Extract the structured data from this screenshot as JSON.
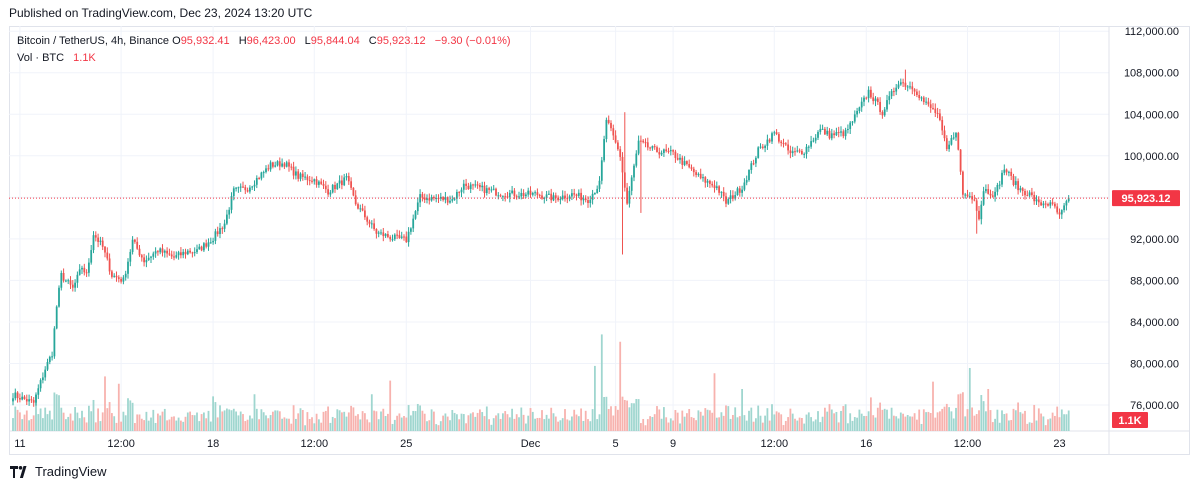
{
  "header": {
    "published": "Published on TradingView.com, Dec 23, 2024 13:20 UTC"
  },
  "legend": {
    "symbol": "Bitcoin / TetherUS, 4h, Binance",
    "o_label": "O",
    "o": "95,932.41",
    "h_label": "H",
    "h": "96,423.00",
    "l_label": "L",
    "l": "95,844.04",
    "c_label": "C",
    "c": "95,923.12",
    "change": "−9.30 (−0.01%)",
    "vol_label": "Vol · BTC",
    "vol": "1.1K"
  },
  "footer": {
    "brand": "TradingView",
    "logo_icon": "tradingview-logo-icon"
  },
  "colors": {
    "up": "#26a69a",
    "down": "#ef5350",
    "price_line": "#f23645",
    "up_vol": "#9fd6cf",
    "down_vol": "#f7b2ae"
  },
  "chart_data": {
    "type": "candlestick",
    "symbol": "BTCUSDT",
    "interval": "4h",
    "exchange": "Binance",
    "price_ticks": [
      76000,
      80000,
      84000,
      88000,
      92000,
      96000,
      100000,
      104000,
      108000,
      112000
    ],
    "price_tick_labels": [
      "76,000.00",
      "80,000.00",
      "84,000.00",
      "88,000.00",
      "92,000.00",
      "100,000.00",
      "104,000.00",
      "108,000.00",
      "112,000.00"
    ],
    "ylim": [
      73500,
      112500
    ],
    "last_price": 95923.12,
    "last_price_label": "95,923.12",
    "volume_label": "1.1K",
    "x_labels": [
      "11",
      "12:00",
      "18",
      "12:00",
      "25",
      "Dec",
      "5",
      "9",
      "12:00",
      "16",
      "12:00",
      "23"
    ],
    "x_label_index": [
      3,
      47,
      87,
      131,
      171,
      225,
      262,
      287,
      331,
      371,
      415,
      455
    ],
    "anchors": [
      [
        0,
        77000
      ],
      [
        9,
        76200
      ],
      [
        14,
        79500
      ],
      [
        17,
        81000
      ],
      [
        19,
        85500
      ],
      [
        21,
        88500
      ],
      [
        26,
        87200
      ],
      [
        30,
        89300
      ],
      [
        32,
        88500
      ],
      [
        35,
        92500
      ],
      [
        39,
        91200
      ],
      [
        43,
        88500
      ],
      [
        48,
        88000
      ],
      [
        52,
        91800
      ],
      [
        57,
        89900
      ],
      [
        63,
        90900
      ],
      [
        70,
        90200
      ],
      [
        76,
        90800
      ],
      [
        80,
        90800
      ],
      [
        87,
        92100
      ],
      [
        92,
        93500
      ],
      [
        96,
        96600
      ],
      [
        102,
        96900
      ],
      [
        112,
        99100
      ],
      [
        118,
        99300
      ],
      [
        124,
        98000
      ],
      [
        131,
        97700
      ],
      [
        137,
        96600
      ],
      [
        145,
        97800
      ],
      [
        149,
        95400
      ],
      [
        158,
        92600
      ],
      [
        165,
        92100
      ],
      [
        171,
        91900
      ],
      [
        177,
        96000
      ],
      [
        183,
        95900
      ],
      [
        191,
        95800
      ],
      [
        196,
        97200
      ],
      [
        204,
        96800
      ],
      [
        212,
        96400
      ],
      [
        220,
        96300
      ],
      [
        228,
        96300
      ],
      [
        235,
        95900
      ],
      [
        243,
        96300
      ],
      [
        250,
        95800
      ],
      [
        255,
        97300
      ],
      [
        258,
        103500
      ],
      [
        264,
        100000
      ],
      [
        267,
        95400
      ],
      [
        272,
        101300
      ],
      [
        279,
        100500
      ],
      [
        287,
        100200
      ],
      [
        292,
        99200
      ],
      [
        299,
        97800
      ],
      [
        306,
        97000
      ],
      [
        310,
        95500
      ],
      [
        317,
        97000
      ],
      [
        324,
        100500
      ],
      [
        331,
        102200
      ],
      [
        338,
        100200
      ],
      [
        344,
        100500
      ],
      [
        351,
        102500
      ],
      [
        355,
        102000
      ],
      [
        362,
        102200
      ],
      [
        368,
        104500
      ],
      [
        372,
        106200
      ],
      [
        378,
        104200
      ],
      [
        385,
        107200
      ],
      [
        392,
        106500
      ],
      [
        396,
        105200
      ],
      [
        402,
        104000
      ],
      [
        406,
        100500
      ],
      [
        410,
        102500
      ],
      [
        413,
        96300
      ],
      [
        418,
        96000
      ],
      [
        420,
        94000
      ],
      [
        422,
        96800
      ],
      [
        427,
        96300
      ],
      [
        431,
        98800
      ],
      [
        437,
        96900
      ],
      [
        442,
        96300
      ],
      [
        446,
        95300
      ],
      [
        449,
        95500
      ],
      [
        453,
        95000
      ],
      [
        455,
        94100
      ],
      [
        459,
        95900
      ]
    ],
    "spikes": [
      [
        265,
        "low",
        90500
      ],
      [
        266,
        "high",
        104200
      ],
      [
        273,
        "low",
        94500
      ],
      [
        388,
        "high",
        108300
      ],
      [
        419,
        "low",
        92500
      ]
    ],
    "volume_peaks": [
      [
        10,
        0.35
      ],
      [
        40,
        0.52
      ],
      [
        46,
        0.45
      ],
      [
        87,
        0.33
      ],
      [
        105,
        0.35
      ],
      [
        156,
        0.35
      ],
      [
        164,
        0.48
      ],
      [
        253,
        0.62
      ],
      [
        256,
        0.92
      ],
      [
        264,
        0.85
      ],
      [
        305,
        0.55
      ],
      [
        317,
        0.4
      ],
      [
        373,
        0.32
      ],
      [
        400,
        0.47
      ],
      [
        416,
        0.6
      ],
      [
        424,
        0.4
      ]
    ]
  }
}
